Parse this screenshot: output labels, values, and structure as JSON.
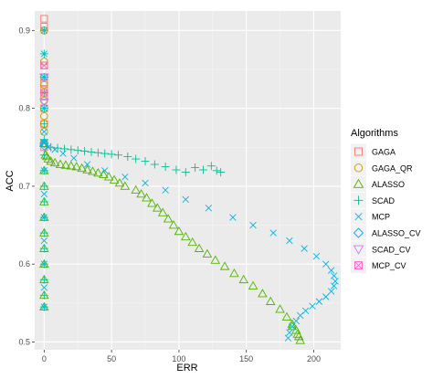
{
  "chart_data": {
    "type": "scatter",
    "title": "",
    "xlabel": "ERR",
    "ylabel": "ACC",
    "xlim": [
      -7,
      220
    ],
    "ylim": [
      0.49,
      0.925
    ],
    "x_ticks": [
      0,
      50,
      100,
      150,
      200
    ],
    "y_ticks": [
      0.5,
      0.6,
      0.7,
      0.8,
      0.9
    ],
    "x_tick_labels": [
      "0",
      "50",
      "100",
      "150",
      "200"
    ],
    "y_tick_labels": [
      "0.5",
      "0.6",
      "0.7",
      "0.8",
      "0.9"
    ],
    "grid": true,
    "legend": {
      "title": "Algorithms",
      "position": "right"
    },
    "series": [
      {
        "name": "GAGA",
        "shape": "square",
        "color": "#F8766D",
        "points": [
          [
            0,
            0.915
          ],
          [
            0,
            0.905
          ],
          [
            0,
            0.855
          ],
          [
            0,
            0.84
          ],
          [
            0,
            0.832
          ],
          [
            0,
            0.825
          ],
          [
            0,
            0.815
          ],
          [
            0,
            0.8
          ],
          [
            0,
            0.78
          ],
          [
            0,
            0.755
          ],
          [
            0,
            0.75
          ]
        ]
      },
      {
        "name": "GAGA_QR",
        "shape": "circle",
        "color": "#C49A00",
        "points": [
          [
            0,
            0.9
          ],
          [
            0,
            0.86
          ],
          [
            0,
            0.84
          ],
          [
            0,
            0.83
          ],
          [
            0,
            0.82
          ],
          [
            0,
            0.81
          ],
          [
            0,
            0.8
          ],
          [
            0,
            0.79
          ],
          [
            0,
            0.78
          ],
          [
            0,
            0.77
          ],
          [
            0,
            0.755
          ]
        ]
      },
      {
        "name": "ALASSO",
        "shape": "triangle",
        "color": "#53B400",
        "points": [
          [
            0,
            0.755
          ],
          [
            1,
            0.74
          ],
          [
            2,
            0.738
          ],
          [
            3,
            0.735
          ],
          [
            5,
            0.732
          ],
          [
            8,
            0.73
          ],
          [
            12,
            0.728
          ],
          [
            16,
            0.727
          ],
          [
            20,
            0.726
          ],
          [
            24,
            0.725
          ],
          [
            28,
            0.723
          ],
          [
            32,
            0.721
          ],
          [
            36,
            0.719
          ],
          [
            40,
            0.717
          ],
          [
            44,
            0.715
          ],
          [
            48,
            0.712
          ],
          [
            52,
            0.708
          ],
          [
            56,
            0.704
          ],
          [
            60,
            0.7
          ],
          [
            68,
            0.695
          ],
          [
            72,
            0.69
          ],
          [
            76,
            0.685
          ],
          [
            80,
            0.678
          ],
          [
            84,
            0.672
          ],
          [
            88,
            0.666
          ],
          [
            92,
            0.658
          ],
          [
            96,
            0.65
          ],
          [
            100,
            0.642
          ],
          [
            105,
            0.635
          ],
          [
            110,
            0.628
          ],
          [
            115,
            0.62
          ],
          [
            121,
            0.613
          ],
          [
            127,
            0.605
          ],
          [
            134,
            0.597
          ],
          [
            141,
            0.588
          ],
          [
            148,
            0.58
          ],
          [
            155,
            0.572
          ],
          [
            162,
            0.562
          ],
          [
            168,
            0.552
          ],
          [
            175,
            0.542
          ],
          [
            180,
            0.532
          ],
          [
            184,
            0.523
          ],
          [
            187,
            0.515
          ],
          [
            189,
            0.507
          ],
          [
            190,
            0.502
          ],
          [
            188,
            0.51
          ],
          [
            184,
            0.52
          ],
          [
            0,
            0.72
          ],
          [
            0,
            0.7
          ],
          [
            0,
            0.68
          ],
          [
            0,
            0.66
          ],
          [
            0,
            0.64
          ],
          [
            0,
            0.62
          ],
          [
            0,
            0.6
          ],
          [
            0,
            0.58
          ],
          [
            0,
            0.56
          ],
          [
            0,
            0.545
          ]
        ]
      },
      {
        "name": "SCAD",
        "shape": "plus",
        "color": "#00C094",
        "points": [
          [
            0,
            0.9
          ],
          [
            0,
            0.87
          ],
          [
            0,
            0.84
          ],
          [
            0,
            0.82
          ],
          [
            0,
            0.8
          ],
          [
            0,
            0.78
          ],
          [
            0,
            0.76
          ],
          [
            5,
            0.75
          ],
          [
            10,
            0.749
          ],
          [
            15,
            0.748
          ],
          [
            20,
            0.747
          ],
          [
            25,
            0.746
          ],
          [
            30,
            0.745
          ],
          [
            35,
            0.744
          ],
          [
            40,
            0.743
          ],
          [
            45,
            0.742
          ],
          [
            50,
            0.741
          ],
          [
            55,
            0.74
          ],
          [
            62,
            0.738
          ],
          [
            68,
            0.735
          ],
          [
            75,
            0.732
          ],
          [
            82,
            0.728
          ],
          [
            90,
            0.725
          ],
          [
            98,
            0.721
          ],
          [
            105,
            0.718
          ],
          [
            112,
            0.724
          ],
          [
            118,
            0.721
          ],
          [
            124,
            0.726
          ],
          [
            128,
            0.72
          ],
          [
            131,
            0.718
          ],
          [
            0,
            0.74
          ],
          [
            0,
            0.72
          ],
          [
            0,
            0.7
          ],
          [
            0,
            0.68
          ],
          [
            0,
            0.66
          ],
          [
            0,
            0.64
          ],
          [
            0,
            0.62
          ],
          [
            0,
            0.6
          ],
          [
            0,
            0.58
          ],
          [
            0,
            0.56
          ],
          [
            0,
            0.545
          ]
        ]
      },
      {
        "name": "MCP",
        "shape": "cross",
        "color": "#00B6EB",
        "points": [
          [
            0,
            0.9
          ],
          [
            0,
            0.87
          ],
          [
            0,
            0.84
          ],
          [
            0,
            0.8
          ],
          [
            0,
            0.77
          ],
          [
            0,
            0.755
          ],
          [
            3,
            0.75
          ],
          [
            8,
            0.747
          ],
          [
            14,
            0.742
          ],
          [
            22,
            0.736
          ],
          [
            32,
            0.728
          ],
          [
            45,
            0.72
          ],
          [
            60,
            0.712
          ],
          [
            75,
            0.704
          ],
          [
            90,
            0.695
          ],
          [
            105,
            0.683
          ],
          [
            122,
            0.672
          ],
          [
            140,
            0.66
          ],
          [
            155,
            0.65
          ],
          [
            170,
            0.64
          ],
          [
            182,
            0.63
          ],
          [
            193,
            0.62
          ],
          [
            202,
            0.61
          ],
          [
            209,
            0.6
          ],
          [
            213,
            0.592
          ],
          [
            215,
            0.585
          ],
          [
            216,
            0.578
          ],
          [
            215,
            0.572
          ],
          [
            213,
            0.565
          ],
          [
            209,
            0.558
          ],
          [
            204,
            0.552
          ],
          [
            199,
            0.546
          ],
          [
            194,
            0.54
          ],
          [
            190,
            0.534
          ],
          [
            187,
            0.527
          ],
          [
            184,
            0.52
          ],
          [
            182,
            0.512
          ],
          [
            181,
            0.505
          ],
          [
            0,
            0.72
          ],
          [
            0,
            0.69
          ],
          [
            0,
            0.66
          ],
          [
            0,
            0.63
          ],
          [
            0,
            0.6
          ],
          [
            0,
            0.57
          ],
          [
            0,
            0.545
          ]
        ]
      },
      {
        "name": "ALASSO_CV",
        "shape": "diamond",
        "color": "#00A9FF",
        "points": [
          [
            0,
            0.755
          ],
          [
            0,
            0.752
          ]
        ]
      },
      {
        "name": "SCAD_CV",
        "shape": "triangle-down",
        "color": "#C77CFF",
        "points": [
          [
            0,
            0.84
          ],
          [
            0,
            0.808
          ]
        ]
      },
      {
        "name": "MCP_CV",
        "shape": "square-x",
        "color": "#FF61CC",
        "points": [
          [
            0,
            0.855
          ],
          [
            0,
            0.82
          ]
        ]
      }
    ]
  }
}
